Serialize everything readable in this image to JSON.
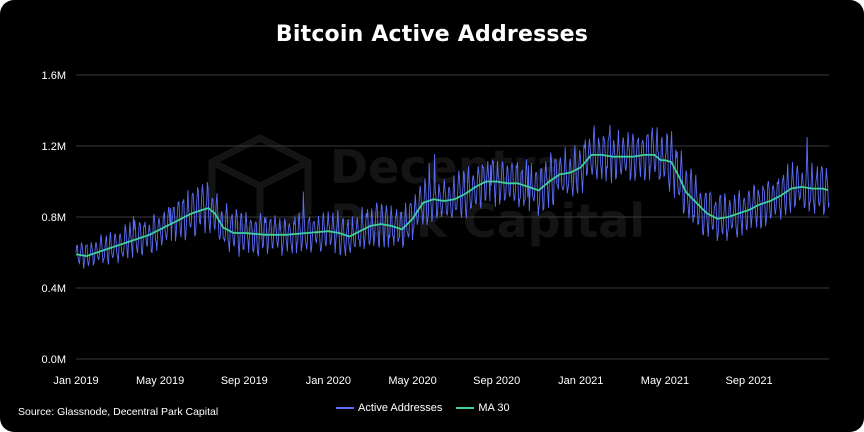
{
  "title": "Bitcoin Active Addresses",
  "source": "Source: Glassnode, Decentral Park Capital",
  "watermark": {
    "line1": "Decentral",
    "line2": "Park Capital"
  },
  "colors": {
    "background": "#000000",
    "active": "#5b6cf5",
    "ma": "#3ecf9a",
    "grid": "#3a3a3a"
  },
  "chart_data": {
    "type": "line",
    "title": "Bitcoin Active Addresses",
    "xlabel": "",
    "ylabel": "",
    "x_ticks": [
      {
        "label": "Jan 2019",
        "m": 0
      },
      {
        "label": "May 2019",
        "m": 4
      },
      {
        "label": "Sep 2019",
        "m": 8
      },
      {
        "label": "Jan 2020",
        "m": 12
      },
      {
        "label": "May 2020",
        "m": 16
      },
      {
        "label": "Sep 2020",
        "m": 20
      },
      {
        "label": "Jan 2021",
        "m": 24
      },
      {
        "label": "May 2021",
        "m": 28
      },
      {
        "label": "Sep 2021",
        "m": 32
      }
    ],
    "y_ticks": [
      {
        "label": "0.0M",
        "v": 0
      },
      {
        "label": "0.4M",
        "v": 0.4
      },
      {
        "label": "0.8M",
        "v": 0.8
      },
      {
        "label": "1.2M",
        "v": 1.2
      },
      {
        "label": "1.6M",
        "v": 1.6
      }
    ],
    "ylim": [
      0,
      1.6
    ],
    "xlim_months": [
      0,
      35.8
    ],
    "series": [
      {
        "name": "Active Addresses",
        "color": "#5b6cf5",
        "note": "daily values oscillating around MA 30 with weekly seasonality",
        "amplitude": [
          [
            0,
            0.07
          ],
          [
            4,
            0.11
          ],
          [
            6,
            0.13
          ],
          [
            8,
            0.12
          ],
          [
            12,
            0.11
          ],
          [
            16,
            0.12
          ],
          [
            20,
            0.13
          ],
          [
            24,
            0.14
          ],
          [
            27,
            0.14
          ],
          [
            28,
            0.15
          ],
          [
            30,
            0.15
          ],
          [
            32,
            0.12
          ],
          [
            35.8,
            0.14
          ]
        ]
      },
      {
        "name": "MA 30",
        "color": "#3ecf9a",
        "points": [
          [
            0,
            0.59
          ],
          [
            0.5,
            0.58
          ],
          [
            1,
            0.6
          ],
          [
            1.5,
            0.62
          ],
          [
            2,
            0.64
          ],
          [
            2.5,
            0.66
          ],
          [
            3,
            0.68
          ],
          [
            3.5,
            0.7
          ],
          [
            4,
            0.73
          ],
          [
            4.5,
            0.76
          ],
          [
            5,
            0.79
          ],
          [
            5.5,
            0.82
          ],
          [
            6,
            0.84
          ],
          [
            6.3,
            0.85
          ],
          [
            6.6,
            0.82
          ],
          [
            7,
            0.74
          ],
          [
            7.5,
            0.71
          ],
          [
            8,
            0.71
          ],
          [
            9,
            0.7
          ],
          [
            10,
            0.7
          ],
          [
            11,
            0.71
          ],
          [
            12,
            0.72
          ],
          [
            12.5,
            0.71
          ],
          [
            13,
            0.69
          ],
          [
            13.5,
            0.72
          ],
          [
            14,
            0.75
          ],
          [
            14.5,
            0.76
          ],
          [
            15,
            0.75
          ],
          [
            15.5,
            0.73
          ],
          [
            16,
            0.79
          ],
          [
            16.5,
            0.88
          ],
          [
            17,
            0.9
          ],
          [
            17.5,
            0.89
          ],
          [
            18,
            0.9
          ],
          [
            18.5,
            0.93
          ],
          [
            19,
            0.97
          ],
          [
            19.5,
            1.0
          ],
          [
            20,
            1.0
          ],
          [
            20.5,
            0.99
          ],
          [
            21,
            0.99
          ],
          [
            21.5,
            0.97
          ],
          [
            22,
            0.95
          ],
          [
            22.5,
            1.0
          ],
          [
            23,
            1.04
          ],
          [
            23.5,
            1.05
          ],
          [
            24,
            1.08
          ],
          [
            24.5,
            1.15
          ],
          [
            25,
            1.15
          ],
          [
            25.5,
            1.14
          ],
          [
            26,
            1.14
          ],
          [
            26.5,
            1.14
          ],
          [
            27,
            1.15
          ],
          [
            27.5,
            1.15
          ],
          [
            27.8,
            1.12
          ],
          [
            28,
            1.12
          ],
          [
            28.3,
            1.11
          ],
          [
            28.7,
            1.02
          ],
          [
            29,
            0.94
          ],
          [
            29.5,
            0.88
          ],
          [
            30,
            0.82
          ],
          [
            30.5,
            0.79
          ],
          [
            31,
            0.8
          ],
          [
            31.5,
            0.82
          ],
          [
            32,
            0.84
          ],
          [
            32.5,
            0.87
          ],
          [
            33,
            0.89
          ],
          [
            33.5,
            0.92
          ],
          [
            34,
            0.96
          ],
          [
            34.5,
            0.97
          ],
          [
            35,
            0.96
          ],
          [
            35.5,
            0.96
          ],
          [
            35.8,
            0.95
          ]
        ]
      }
    ],
    "grid": true,
    "legend": "bottom-center"
  }
}
